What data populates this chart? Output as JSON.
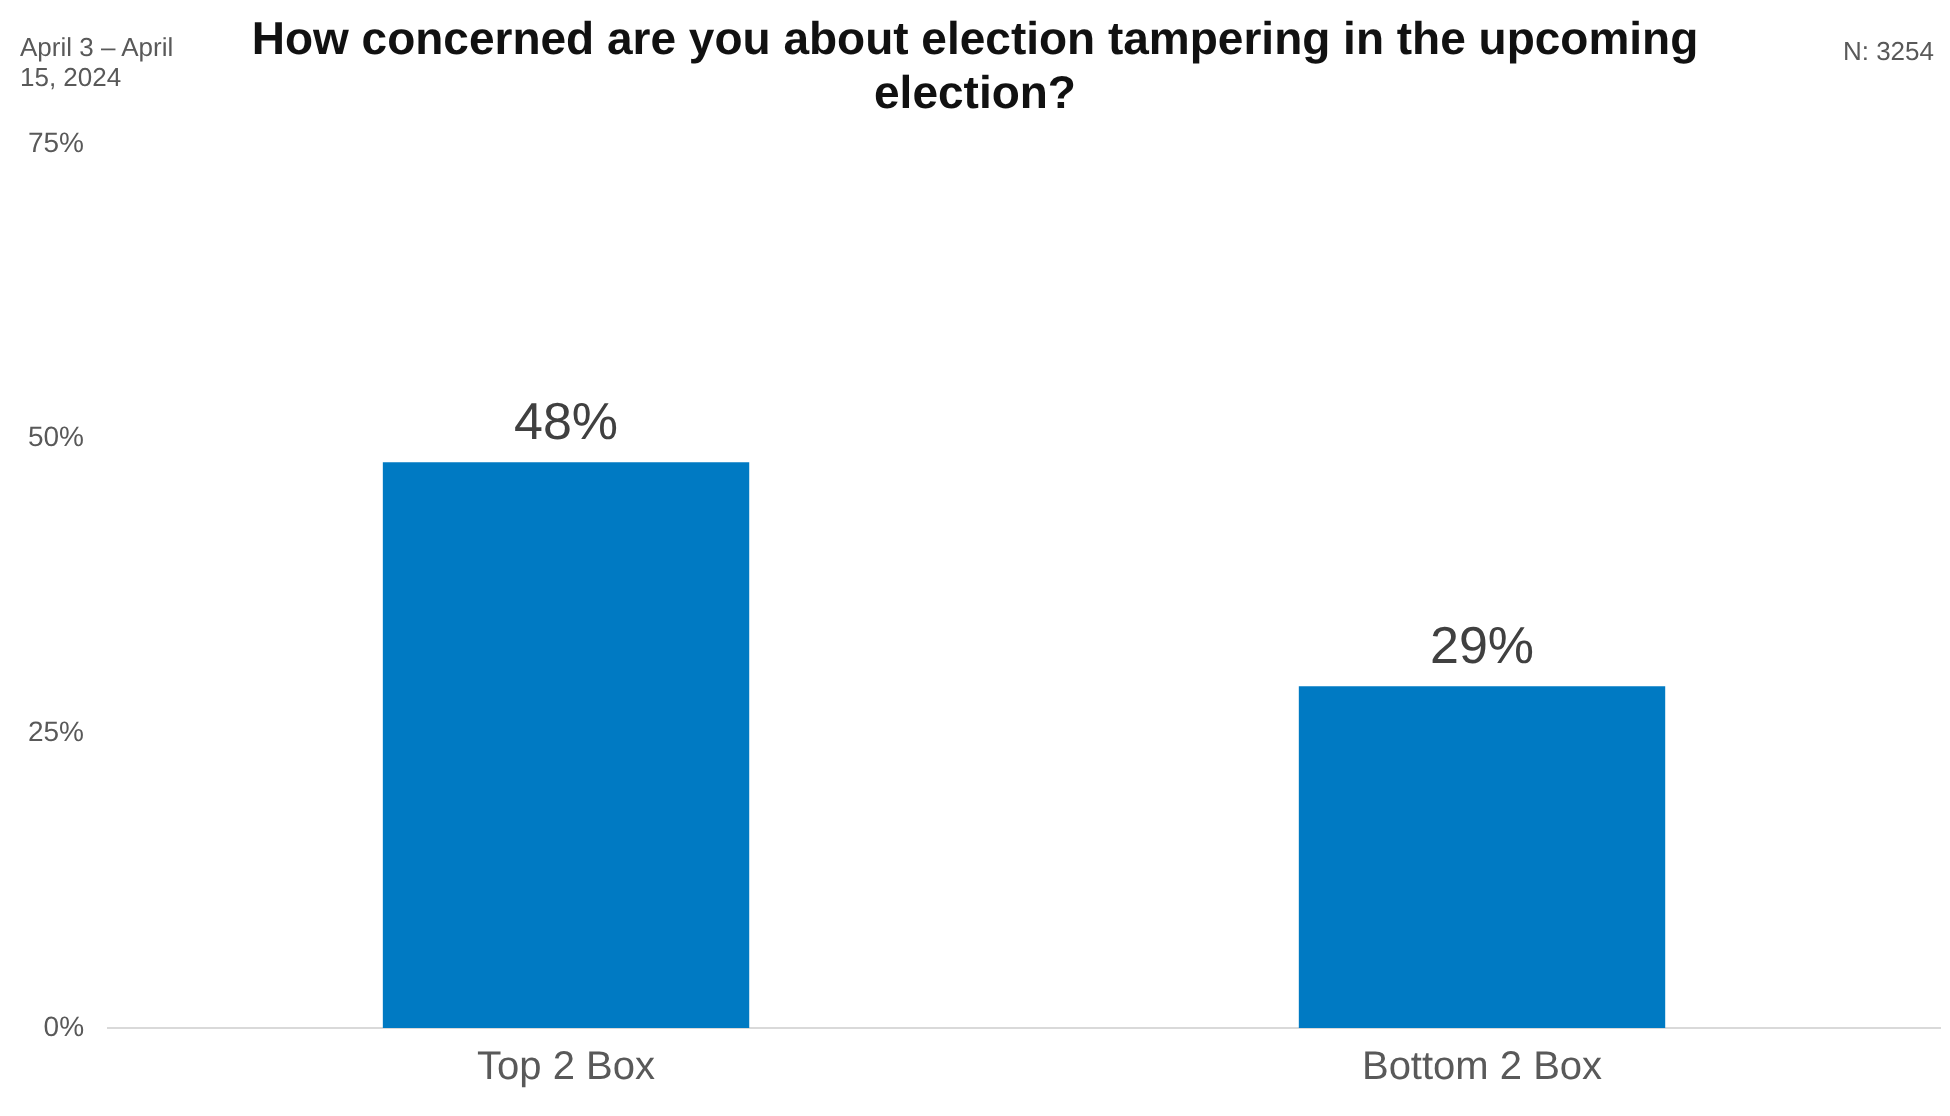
{
  "chart_data": {
    "type": "bar",
    "title": "How concerned are you about election tampering in the upcoming election?",
    "annotations": [
      "April 3 – April 15, 2024",
      "N: 3254"
    ],
    "categories": [
      "Top 2 Box",
      "Bottom 2 Box"
    ],
    "values": [
      48,
      29
    ],
    "color": "#007ac3",
    "ylim": [
      0,
      75
    ],
    "yticks": [
      {
        "value": 0,
        "label": "0%"
      },
      {
        "value": 25,
        "label": "25%"
      },
      {
        "value": 50,
        "label": "50%"
      },
      {
        "value": 75,
        "label": "75%"
      }
    ],
    "value_labels": [
      "48%",
      "29%"
    ],
    "grid": false,
    "legend": false
  }
}
